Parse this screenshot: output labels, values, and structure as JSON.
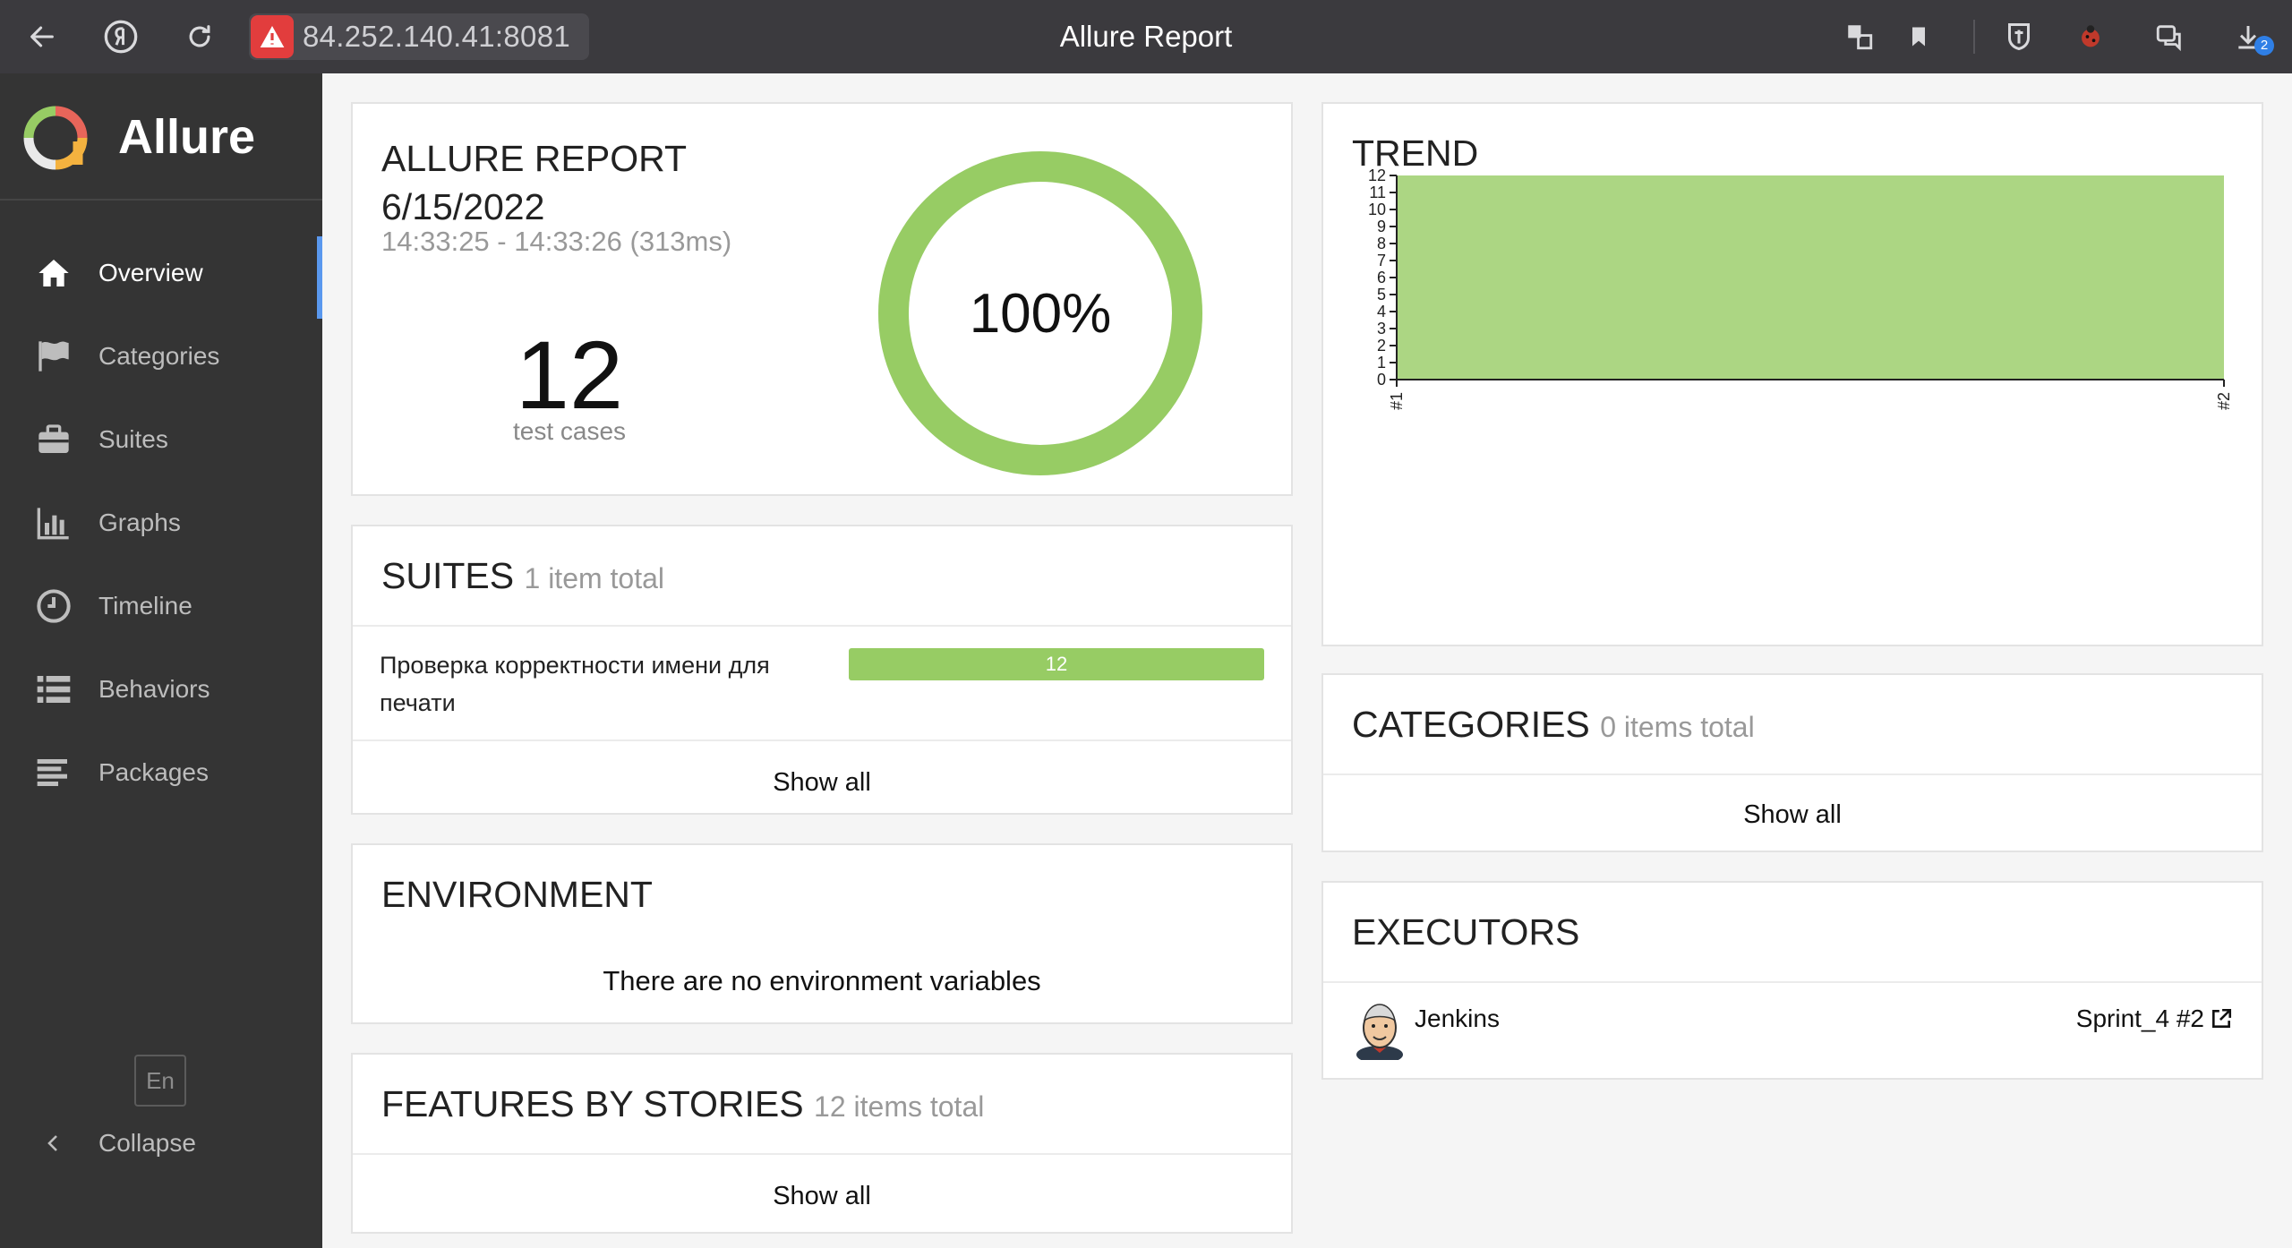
{
  "browser": {
    "address": "84.252.140.41:8081",
    "window_title": "Allure Report",
    "downloads_count": "2"
  },
  "sidebar": {
    "brand": "Allure",
    "items": [
      {
        "label": "Overview",
        "icon": "home-icon",
        "active": true
      },
      {
        "label": "Categories",
        "icon": "flag-icon"
      },
      {
        "label": "Suites",
        "icon": "briefcase-icon"
      },
      {
        "label": "Graphs",
        "icon": "bar-chart-icon"
      },
      {
        "label": "Timeline",
        "icon": "clock-icon"
      },
      {
        "label": "Behaviors",
        "icon": "list-icon"
      },
      {
        "label": "Packages",
        "icon": "align-left-icon"
      }
    ],
    "language": "En",
    "collapse_label": "Collapse"
  },
  "summary": {
    "title_line1": "ALLURE REPORT",
    "title_line2": "6/15/2022",
    "time_range": "14:33:25 - 14:33:26 (313ms)",
    "test_count": "12",
    "test_count_label": "test cases",
    "pass_rate": "100%",
    "pass_fraction": 1.0,
    "color": "#97cc64"
  },
  "suites": {
    "title": "SUITES",
    "subtitle": "1 item total",
    "rows": [
      {
        "name": "Проверка корректности имени для печати",
        "passed": "12"
      }
    ],
    "show_all": "Show all"
  },
  "environment": {
    "title": "ENVIRONMENT",
    "message": "There are no environment variables"
  },
  "features": {
    "title": "FEATURES BY STORIES",
    "subtitle": "12 items total",
    "show_all": "Show all"
  },
  "trend": {
    "title": "TREND"
  },
  "chart_data": {
    "type": "area",
    "x": [
      "#1",
      "#2"
    ],
    "series": [
      {
        "values": [
          12,
          12
        ]
      }
    ],
    "ylim": [
      0,
      12
    ],
    "yticks": [
      "0",
      "1",
      "2",
      "3",
      "4",
      "5",
      "6",
      "7",
      "8",
      "9",
      "10",
      "11",
      "12"
    ],
    "grid": false,
    "color": "#97cc64"
  },
  "categories": {
    "title": "CATEGORIES",
    "subtitle": "0 items total",
    "show_all": "Show all"
  },
  "executors": {
    "title": "EXECUTORS",
    "name": "Jenkins",
    "build": "Sprint_4 #2"
  }
}
